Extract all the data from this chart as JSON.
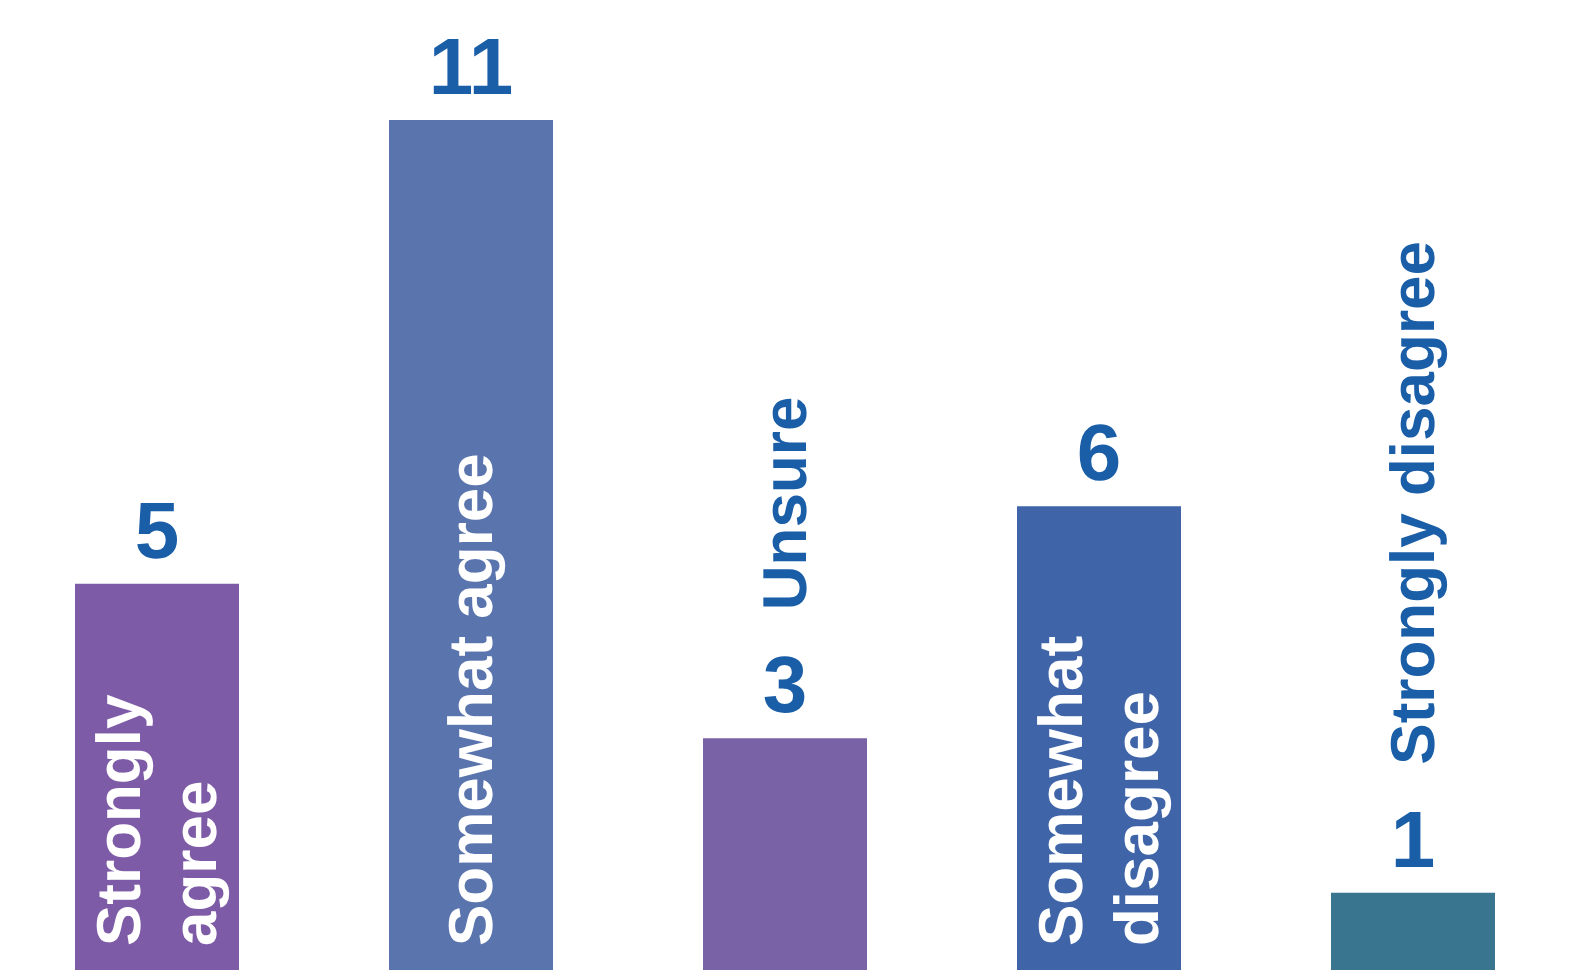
{
  "chart_data": {
    "type": "bar",
    "categories": [
      "Strongly agree",
      "Somewhat agree",
      "Unsure",
      "Somewhat disagree",
      "Strongly disagree"
    ],
    "values": [
      5,
      11,
      3,
      6,
      1
    ],
    "colors": [
      "#7d5ba6",
      "#5a74ae",
      "#7a62a6",
      "#3f65a8",
      "#3a7590"
    ],
    "data_labels": true
  }
}
